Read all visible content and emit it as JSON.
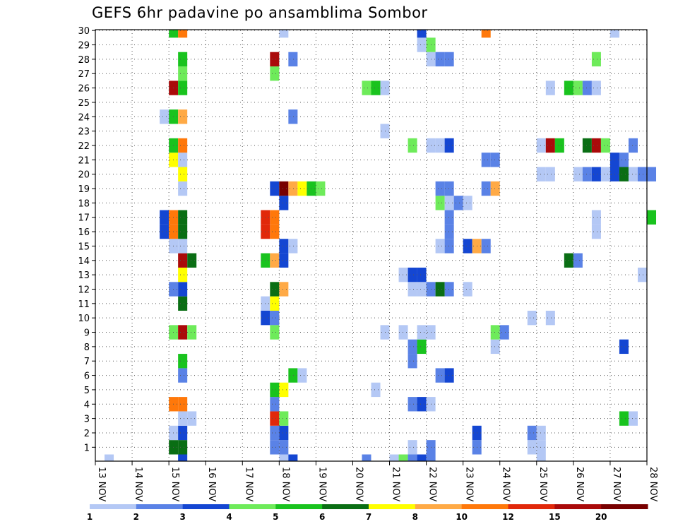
{
  "chart_data": {
    "type": "heatmap",
    "title": "GEFS 6hr padavine po ansamblima Sombor",
    "y_members": [
      1,
      2,
      3,
      4,
      5,
      6,
      7,
      8,
      9,
      10,
      11,
      12,
      13,
      14,
      15,
      16,
      17,
      18,
      19,
      20,
      21,
      22,
      23,
      24,
      25,
      26,
      27,
      28,
      29,
      30
    ],
    "x_ticks": [
      "13 NOV",
      "14 NOV",
      "15 NOV",
      "16 NOV",
      "17 NOV",
      "18 NOV",
      "19 NOV",
      "20 NOV",
      "21 NOV",
      "22 NOV",
      "23 NOV",
      "24 NOV",
      "25 NOV",
      "26 NOV",
      "27 NOV",
      "28 NOV"
    ],
    "x_range_days": [
      13,
      28
    ],
    "step_hours": 6,
    "grid": "dotted",
    "colorbar": {
      "labels": [
        "1",
        "2",
        "3",
        "4",
        "5",
        "6",
        "7",
        "8",
        "10",
        "12",
        "15",
        "20"
      ],
      "colors": [
        "#b4c8f5",
        "#5a82e6",
        "#1446d2",
        "#6eeb5a",
        "#19c31e",
        "#0a6e14",
        "#ffff00",
        "#ffaa46",
        "#ff780a",
        "#e1280a",
        "#aa0a0a",
        "#780000"
      ]
    },
    "cells": [
      [
        0,
        13.25,
        1
      ],
      [
        0,
        15.25,
        3
      ],
      [
        0,
        18.0,
        1
      ],
      [
        0,
        18.25,
        3
      ],
      [
        0,
        20.25,
        2
      ],
      [
        0,
        21.0,
        1
      ],
      [
        0,
        21.25,
        4
      ],
      [
        0,
        21.5,
        2
      ],
      [
        0,
        21.75,
        3
      ],
      [
        0,
        22.0,
        2
      ],
      [
        0,
        25.0,
        1
      ],
      [
        1,
        15.0,
        6
      ],
      [
        1,
        15.25,
        6
      ],
      [
        1,
        17.75,
        2
      ],
      [
        1,
        18.0,
        2
      ],
      [
        1,
        21.5,
        1
      ],
      [
        1,
        22.0,
        2
      ],
      [
        1,
        23.25,
        2
      ],
      [
        1,
        24.75,
        1
      ],
      [
        1,
        25.0,
        1
      ],
      [
        2,
        15.0,
        1
      ],
      [
        2,
        15.25,
        3
      ],
      [
        2,
        17.75,
        2
      ],
      [
        2,
        18.0,
        3
      ],
      [
        2,
        23.25,
        3
      ],
      [
        2,
        24.75,
        2
      ],
      [
        2,
        25.0,
        1
      ],
      [
        3,
        15.25,
        1
      ],
      [
        3,
        15.5,
        1
      ],
      [
        3,
        17.75,
        10
      ],
      [
        3,
        18.0,
        4
      ],
      [
        3,
        27.25,
        5
      ],
      [
        3,
        27.5,
        1
      ],
      [
        4,
        15.0,
        9
      ],
      [
        4,
        15.25,
        9
      ],
      [
        4,
        17.75,
        2
      ],
      [
        4,
        21.5,
        2
      ],
      [
        4,
        21.75,
        3
      ],
      [
        4,
        22.0,
        1
      ],
      [
        5,
        17.75,
        5
      ],
      [
        5,
        18.0,
        7
      ],
      [
        5,
        20.5,
        1
      ],
      [
        6,
        15.25,
        2
      ],
      [
        6,
        18.25,
        5
      ],
      [
        6,
        18.5,
        1
      ],
      [
        6,
        22.25,
        2
      ],
      [
        6,
        22.5,
        3
      ],
      [
        7,
        15.25,
        5
      ],
      [
        7,
        21.5,
        2
      ],
      [
        8,
        21.5,
        2
      ],
      [
        8,
        21.75,
        5
      ],
      [
        8,
        23.75,
        1
      ],
      [
        8,
        27.25,
        3
      ],
      [
        9,
        15.0,
        4
      ],
      [
        9,
        15.25,
        11
      ],
      [
        9,
        15.5,
        4
      ],
      [
        9,
        17.75,
        4
      ],
      [
        9,
        20.75,
        1
      ],
      [
        9,
        21.25,
        1
      ],
      [
        9,
        21.75,
        1
      ],
      [
        9,
        22.0,
        1
      ],
      [
        9,
        23.75,
        4
      ],
      [
        9,
        24.0,
        2
      ],
      [
        10,
        17.5,
        3
      ],
      [
        10,
        17.75,
        2
      ],
      [
        10,
        24.75,
        1
      ],
      [
        10,
        25.25,
        1
      ],
      [
        11,
        15.25,
        6
      ],
      [
        11,
        17.5,
        1
      ],
      [
        11,
        17.75,
        7
      ],
      [
        12,
        15.0,
        2
      ],
      [
        12,
        15.25,
        3
      ],
      [
        12,
        17.75,
        6
      ],
      [
        12,
        18.0,
        8
      ],
      [
        12,
        21.5,
        1
      ],
      [
        12,
        21.75,
        1
      ],
      [
        12,
        22.0,
        2
      ],
      [
        12,
        22.25,
        6
      ],
      [
        12,
        22.5,
        2
      ],
      [
        12,
        23.0,
        1
      ],
      [
        13,
        15.25,
        7
      ],
      [
        13,
        21.25,
        1
      ],
      [
        13,
        21.5,
        3
      ],
      [
        13,
        21.75,
        3
      ],
      [
        13,
        27.75,
        1
      ],
      [
        14,
        15.25,
        11
      ],
      [
        14,
        15.5,
        6
      ],
      [
        14,
        17.5,
        5
      ],
      [
        14,
        17.75,
        8
      ],
      [
        14,
        18.0,
        3
      ],
      [
        14,
        25.75,
        6
      ],
      [
        14,
        26.0,
        2
      ],
      [
        15,
        15.0,
        1
      ],
      [
        15,
        15.25,
        1
      ],
      [
        15,
        18.0,
        3
      ],
      [
        15,
        18.25,
        1
      ],
      [
        15,
        22.25,
        1
      ],
      [
        15,
        22.5,
        2
      ],
      [
        15,
        23.0,
        3
      ],
      [
        15,
        23.25,
        8
      ],
      [
        15,
        23.5,
        2
      ],
      [
        16,
        14.75,
        3
      ],
      [
        16,
        15.0,
        9
      ],
      [
        16,
        15.25,
        6
      ],
      [
        16,
        17.5,
        10
      ],
      [
        16,
        17.75,
        9
      ],
      [
        16,
        22.5,
        2
      ],
      [
        16,
        26.5,
        1
      ],
      [
        17,
        14.75,
        3
      ],
      [
        17,
        15.0,
        9
      ],
      [
        17,
        15.25,
        6
      ],
      [
        17,
        17.5,
        10
      ],
      [
        17,
        17.75,
        9
      ],
      [
        17,
        22.5,
        2
      ],
      [
        17,
        26.5,
        1
      ],
      [
        17,
        28.0,
        5
      ],
      [
        18,
        18.0,
        3
      ],
      [
        18,
        22.25,
        4
      ],
      [
        18,
        22.5,
        1
      ],
      [
        18,
        22.75,
        2
      ],
      [
        18,
        23.0,
        1
      ],
      [
        19,
        15.25,
        1
      ],
      [
        19,
        17.75,
        3
      ],
      [
        19,
        18.0,
        12
      ],
      [
        19,
        18.25,
        8
      ],
      [
        19,
        18.5,
        7
      ],
      [
        19,
        18.75,
        5
      ],
      [
        19,
        19.0,
        4
      ],
      [
        19,
        22.25,
        2
      ],
      [
        19,
        22.5,
        2
      ],
      [
        19,
        23.5,
        2
      ],
      [
        19,
        23.75,
        8
      ],
      [
        20,
        15.25,
        7
      ],
      [
        20,
        25.0,
        1
      ],
      [
        20,
        25.25,
        1
      ],
      [
        20,
        26.0,
        1
      ],
      [
        20,
        26.25,
        2
      ],
      [
        20,
        26.5,
        3
      ],
      [
        20,
        26.75,
        1
      ],
      [
        20,
        27.0,
        3
      ],
      [
        20,
        27.25,
        6
      ],
      [
        20,
        27.5,
        1
      ],
      [
        20,
        27.75,
        2
      ],
      [
        20,
        28.0,
        2
      ],
      [
        21,
        15.0,
        7
      ],
      [
        21,
        15.25,
        1
      ],
      [
        21,
        23.5,
        2
      ],
      [
        21,
        23.75,
        2
      ],
      [
        21,
        27.0,
        3
      ],
      [
        21,
        27.25,
        2
      ],
      [
        22,
        15.0,
        5
      ],
      [
        22,
        15.25,
        9
      ],
      [
        22,
        21.5,
        4
      ],
      [
        22,
        22.0,
        1
      ],
      [
        22,
        22.25,
        1
      ],
      [
        22,
        22.5,
        3
      ],
      [
        22,
        25.0,
        1
      ],
      [
        22,
        25.25,
        11
      ],
      [
        22,
        25.5,
        5
      ],
      [
        22,
        26.25,
        6
      ],
      [
        22,
        26.5,
        11
      ],
      [
        22,
        26.75,
        4
      ],
      [
        22,
        27.5,
        2
      ],
      [
        23,
        20.75,
        1
      ],
      [
        24,
        14.75,
        1
      ],
      [
        24,
        15.0,
        5
      ],
      [
        24,
        15.25,
        8
      ],
      [
        24,
        18.25,
        2
      ],
      [
        26,
        15.0,
        11
      ],
      [
        26,
        15.25,
        5
      ],
      [
        26,
        20.25,
        4
      ],
      [
        26,
        20.5,
        5
      ],
      [
        26,
        20.75,
        1
      ],
      [
        26,
        25.25,
        1
      ],
      [
        26,
        25.75,
        5
      ],
      [
        26,
        26.0,
        4
      ],
      [
        26,
        26.25,
        2
      ],
      [
        26,
        26.5,
        1
      ],
      [
        27,
        15.25,
        4
      ],
      [
        27,
        17.75,
        4
      ],
      [
        28,
        15.25,
        5
      ],
      [
        28,
        17.75,
        11
      ],
      [
        28,
        18.25,
        2
      ],
      [
        28,
        22.0,
        1
      ],
      [
        28,
        22.25,
        2
      ],
      [
        28,
        22.5,
        2
      ],
      [
        28,
        26.5,
        4
      ],
      [
        29,
        21.75,
        1
      ],
      [
        29,
        22.0,
        4
      ],
      [
        30,
        15.0,
        5
      ],
      [
        30,
        15.25,
        9
      ],
      [
        30,
        18.0,
        1
      ],
      [
        30,
        21.75,
        3
      ],
      [
        30,
        23.5,
        9
      ],
      [
        30,
        27.0,
        1
      ]
    ]
  }
}
